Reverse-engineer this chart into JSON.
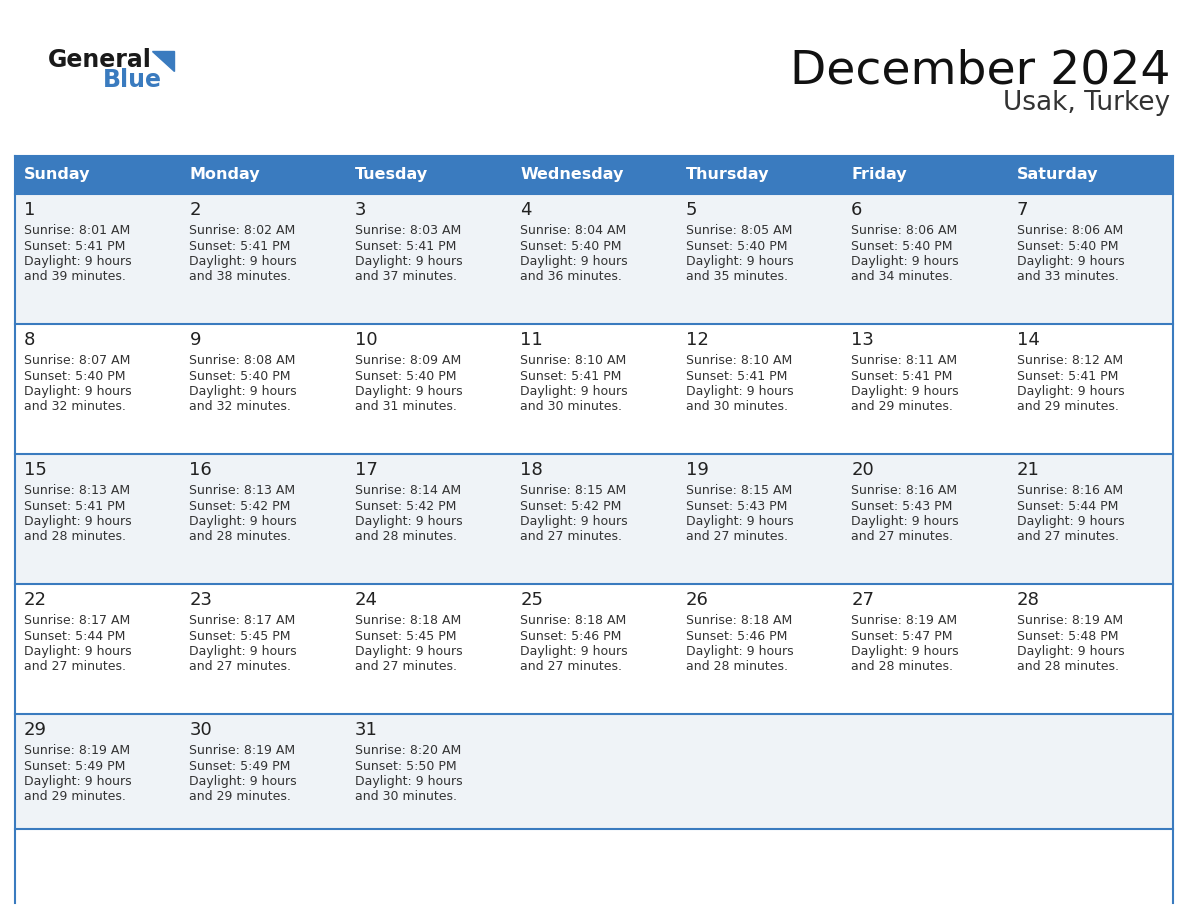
{
  "title": "December 2024",
  "subtitle": "Usak, Turkey",
  "days_of_week": [
    "Sunday",
    "Monday",
    "Tuesday",
    "Wednesday",
    "Thursday",
    "Friday",
    "Saturday"
  ],
  "header_bg": "#3a7bbf",
  "header_text": "#ffffff",
  "row_bg_odd": "#eff3f7",
  "row_bg_even": "#ffffff",
  "cell_border": "#3a7bbf",
  "day_num_color": "#222222",
  "content_color": "#333333",
  "calendar_data": [
    [
      {
        "day": 1,
        "sunrise": "8:01 AM",
        "sunset": "5:41 PM",
        "daylight_h": "9 hours",
        "daylight_m": "and 39 minutes."
      },
      {
        "day": 2,
        "sunrise": "8:02 AM",
        "sunset": "5:41 PM",
        "daylight_h": "9 hours",
        "daylight_m": "and 38 minutes."
      },
      {
        "day": 3,
        "sunrise": "8:03 AM",
        "sunset": "5:41 PM",
        "daylight_h": "9 hours",
        "daylight_m": "and 37 minutes."
      },
      {
        "day": 4,
        "sunrise": "8:04 AM",
        "sunset": "5:40 PM",
        "daylight_h": "9 hours",
        "daylight_m": "and 36 minutes."
      },
      {
        "day": 5,
        "sunrise": "8:05 AM",
        "sunset": "5:40 PM",
        "daylight_h": "9 hours",
        "daylight_m": "and 35 minutes."
      },
      {
        "day": 6,
        "sunrise": "8:06 AM",
        "sunset": "5:40 PM",
        "daylight_h": "9 hours",
        "daylight_m": "and 34 minutes."
      },
      {
        "day": 7,
        "sunrise": "8:06 AM",
        "sunset": "5:40 PM",
        "daylight_h": "9 hours",
        "daylight_m": "and 33 minutes."
      }
    ],
    [
      {
        "day": 8,
        "sunrise": "8:07 AM",
        "sunset": "5:40 PM",
        "daylight_h": "9 hours",
        "daylight_m": "and 32 minutes."
      },
      {
        "day": 9,
        "sunrise": "8:08 AM",
        "sunset": "5:40 PM",
        "daylight_h": "9 hours",
        "daylight_m": "and 32 minutes."
      },
      {
        "day": 10,
        "sunrise": "8:09 AM",
        "sunset": "5:40 PM",
        "daylight_h": "9 hours",
        "daylight_m": "and 31 minutes."
      },
      {
        "day": 11,
        "sunrise": "8:10 AM",
        "sunset": "5:41 PM",
        "daylight_h": "9 hours",
        "daylight_m": "and 30 minutes."
      },
      {
        "day": 12,
        "sunrise": "8:10 AM",
        "sunset": "5:41 PM",
        "daylight_h": "9 hours",
        "daylight_m": "and 30 minutes."
      },
      {
        "day": 13,
        "sunrise": "8:11 AM",
        "sunset": "5:41 PM",
        "daylight_h": "9 hours",
        "daylight_m": "and 29 minutes."
      },
      {
        "day": 14,
        "sunrise": "8:12 AM",
        "sunset": "5:41 PM",
        "daylight_h": "9 hours",
        "daylight_m": "and 29 minutes."
      }
    ],
    [
      {
        "day": 15,
        "sunrise": "8:13 AM",
        "sunset": "5:41 PM",
        "daylight_h": "9 hours",
        "daylight_m": "and 28 minutes."
      },
      {
        "day": 16,
        "sunrise": "8:13 AM",
        "sunset": "5:42 PM",
        "daylight_h": "9 hours",
        "daylight_m": "and 28 minutes."
      },
      {
        "day": 17,
        "sunrise": "8:14 AM",
        "sunset": "5:42 PM",
        "daylight_h": "9 hours",
        "daylight_m": "and 28 minutes."
      },
      {
        "day": 18,
        "sunrise": "8:15 AM",
        "sunset": "5:42 PM",
        "daylight_h": "9 hours",
        "daylight_m": "and 27 minutes."
      },
      {
        "day": 19,
        "sunrise": "8:15 AM",
        "sunset": "5:43 PM",
        "daylight_h": "9 hours",
        "daylight_m": "and 27 minutes."
      },
      {
        "day": 20,
        "sunrise": "8:16 AM",
        "sunset": "5:43 PM",
        "daylight_h": "9 hours",
        "daylight_m": "and 27 minutes."
      },
      {
        "day": 21,
        "sunrise": "8:16 AM",
        "sunset": "5:44 PM",
        "daylight_h": "9 hours",
        "daylight_m": "and 27 minutes."
      }
    ],
    [
      {
        "day": 22,
        "sunrise": "8:17 AM",
        "sunset": "5:44 PM",
        "daylight_h": "9 hours",
        "daylight_m": "and 27 minutes."
      },
      {
        "day": 23,
        "sunrise": "8:17 AM",
        "sunset": "5:45 PM",
        "daylight_h": "9 hours",
        "daylight_m": "and 27 minutes."
      },
      {
        "day": 24,
        "sunrise": "8:18 AM",
        "sunset": "5:45 PM",
        "daylight_h": "9 hours",
        "daylight_m": "and 27 minutes."
      },
      {
        "day": 25,
        "sunrise": "8:18 AM",
        "sunset": "5:46 PM",
        "daylight_h": "9 hours",
        "daylight_m": "and 27 minutes."
      },
      {
        "day": 26,
        "sunrise": "8:18 AM",
        "sunset": "5:46 PM",
        "daylight_h": "9 hours",
        "daylight_m": "and 28 minutes."
      },
      {
        "day": 27,
        "sunrise": "8:19 AM",
        "sunset": "5:47 PM",
        "daylight_h": "9 hours",
        "daylight_m": "and 28 minutes."
      },
      {
        "day": 28,
        "sunrise": "8:19 AM",
        "sunset": "5:48 PM",
        "daylight_h": "9 hours",
        "daylight_m": "and 28 minutes."
      }
    ],
    [
      {
        "day": 29,
        "sunrise": "8:19 AM",
        "sunset": "5:49 PM",
        "daylight_h": "9 hours",
        "daylight_m": "and 29 minutes."
      },
      {
        "day": 30,
        "sunrise": "8:19 AM",
        "sunset": "5:49 PM",
        "daylight_h": "9 hours",
        "daylight_m": "and 29 minutes."
      },
      {
        "day": 31,
        "sunrise": "8:20 AM",
        "sunset": "5:50 PM",
        "daylight_h": "9 hours",
        "daylight_m": "and 30 minutes."
      },
      null,
      null,
      null,
      null
    ]
  ],
  "logo_text1": "General",
  "logo_text2": "Blue",
  "logo_color1": "#1a1a1a",
  "logo_color2": "#3a7bbf",
  "fig_width": 11.88,
  "fig_height": 9.18,
  "dpi": 100
}
